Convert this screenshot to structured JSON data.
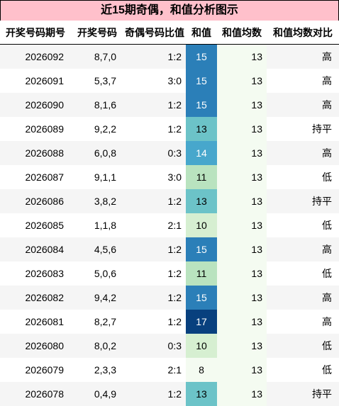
{
  "title": "近15期奇偶，和值分析图示",
  "headers": [
    "开奖号码期号",
    "开奖号码",
    "奇偶号码比值",
    "和值",
    "和值均数",
    "和值均数对比"
  ],
  "rows": [
    {
      "period": "2026092",
      "numbers": "8,7,0",
      "ratio": "1:2",
      "sum": "15",
      "avg": "13",
      "compare": "高",
      "sum_bg": "#2b7fb8",
      "sum_fg": "#ffffff"
    },
    {
      "period": "2026091",
      "numbers": "5,3,7",
      "ratio": "3:0",
      "sum": "15",
      "avg": "13",
      "compare": "高",
      "sum_bg": "#2b7fb8",
      "sum_fg": "#ffffff"
    },
    {
      "period": "2026090",
      "numbers": "8,1,6",
      "ratio": "1:2",
      "sum": "15",
      "avg": "13",
      "compare": "高",
      "sum_bg": "#2b7fb8",
      "sum_fg": "#ffffff"
    },
    {
      "period": "2026089",
      "numbers": "9,2,2",
      "ratio": "1:2",
      "sum": "13",
      "avg": "13",
      "compare": "持平",
      "sum_bg": "#6cc3c8",
      "sum_fg": "#000000"
    },
    {
      "period": "2026088",
      "numbers": "6,0,8",
      "ratio": "0:3",
      "sum": "14",
      "avg": "13",
      "compare": "高",
      "sum_bg": "#47a7cc",
      "sum_fg": "#ffffff"
    },
    {
      "period": "2026087",
      "numbers": "9,1,1",
      "ratio": "3:0",
      "sum": "11",
      "avg": "13",
      "compare": "低",
      "sum_bg": "#b9e3bf",
      "sum_fg": "#000000"
    },
    {
      "period": "2026086",
      "numbers": "3,8,2",
      "ratio": "1:2",
      "sum": "13",
      "avg": "13",
      "compare": "持平",
      "sum_bg": "#6cc3c8",
      "sum_fg": "#000000"
    },
    {
      "period": "2026085",
      "numbers": "1,1,8",
      "ratio": "2:1",
      "sum": "10",
      "avg": "13",
      "compare": "低",
      "sum_bg": "#d6efd1",
      "sum_fg": "#000000"
    },
    {
      "period": "2026084",
      "numbers": "4,5,6",
      "ratio": "1:2",
      "sum": "15",
      "avg": "13",
      "compare": "高",
      "sum_bg": "#2b7fb8",
      "sum_fg": "#ffffff"
    },
    {
      "period": "2026083",
      "numbers": "5,0,6",
      "ratio": "1:2",
      "sum": "11",
      "avg": "13",
      "compare": "低",
      "sum_bg": "#b9e3bf",
      "sum_fg": "#000000"
    },
    {
      "period": "2026082",
      "numbers": "9,4,2",
      "ratio": "1:2",
      "sum": "15",
      "avg": "13",
      "compare": "高",
      "sum_bg": "#2b7fb8",
      "sum_fg": "#ffffff"
    },
    {
      "period": "2026081",
      "numbers": "8,2,7",
      "ratio": "1:2",
      "sum": "17",
      "avg": "13",
      "compare": "高",
      "sum_bg": "#08407e",
      "sum_fg": "#ffffff"
    },
    {
      "period": "2026080",
      "numbers": "8,0,2",
      "ratio": "0:3",
      "sum": "10",
      "avg": "13",
      "compare": "低",
      "sum_bg": "#d6efd1",
      "sum_fg": "#000000"
    },
    {
      "period": "2026079",
      "numbers": "2,3,3",
      "ratio": "2:1",
      "sum": "8",
      "avg": "13",
      "compare": "低",
      "sum_bg": "#f4fbf1",
      "sum_fg": "#000000"
    },
    {
      "period": "2026078",
      "numbers": "0,4,9",
      "ratio": "1:2",
      "sum": "13",
      "avg": "13",
      "compare": "持平",
      "sum_bg": "#6cc3c8",
      "sum_fg": "#000000"
    }
  ],
  "colors": {
    "title_bg": "#ffc0cb",
    "avg_col_bg": "#f4fbf1",
    "odd_row_bg": "#f5f5f5"
  }
}
